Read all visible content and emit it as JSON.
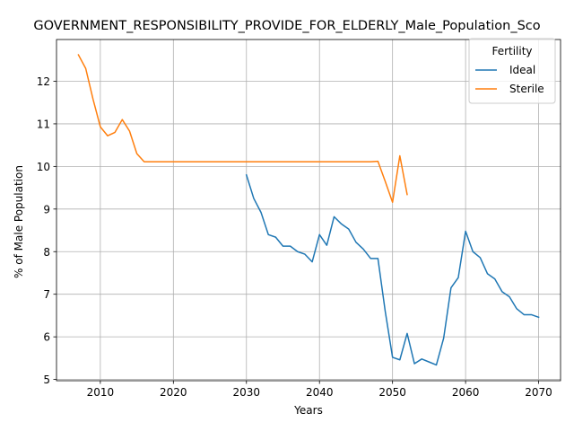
{
  "chart_data": {
    "type": "line",
    "title": "GOVERNMENT_RESPONSIBILITY_PROVIDE_FOR_ELDERLY_Male_Population_Sco",
    "xlabel": "Years",
    "ylabel": "% of Male Population",
    "xlim": [
      2004,
      2073
    ],
    "ylim": [
      4.97,
      12.98
    ],
    "xticks": [
      2010,
      2020,
      2030,
      2040,
      2050,
      2060,
      2070
    ],
    "yticks": [
      5,
      6,
      7,
      8,
      9,
      10,
      11,
      12
    ],
    "grid": true,
    "legend": {
      "title": "Fertility",
      "placement": "upper right"
    },
    "series": [
      {
        "name": "Ideal",
        "color": "#1f77b4",
        "x": [
          2030,
          2031,
          2032,
          2033,
          2034,
          2035,
          2036,
          2037,
          2038,
          2039,
          2040,
          2041,
          2042,
          2043,
          2044,
          2045,
          2046,
          2047,
          2048,
          2049,
          2050,
          2051,
          2052,
          2053,
          2054,
          2055,
          2056,
          2057,
          2058,
          2059,
          2060,
          2061,
          2062,
          2063,
          2064,
          2065,
          2066,
          2067,
          2068,
          2069,
          2070
        ],
        "y": [
          9.8,
          9.25,
          8.92,
          8.4,
          8.34,
          8.13,
          8.13,
          8.0,
          7.94,
          7.76,
          8.4,
          8.15,
          8.82,
          8.65,
          8.53,
          8.22,
          8.06,
          7.84,
          7.84,
          6.6,
          5.52,
          5.46,
          6.08,
          5.37,
          5.48,
          5.41,
          5.34,
          5.97,
          7.15,
          7.39,
          8.48,
          8.0,
          7.86,
          7.48,
          7.36,
          7.06,
          6.94,
          6.66,
          6.52,
          6.52,
          6.46
        ]
      },
      {
        "name": "Sterile",
        "color": "#ff7f0e",
        "x": [
          2007,
          2008,
          2009,
          2010,
          2011,
          2012,
          2013,
          2014,
          2015,
          2016,
          2017,
          2018,
          2019,
          2020,
          2021,
          2022,
          2023,
          2024,
          2025,
          2026,
          2027,
          2028,
          2029,
          2030,
          2031,
          2032,
          2033,
          2034,
          2035,
          2036,
          2037,
          2038,
          2039,
          2040,
          2041,
          2042,
          2043,
          2044,
          2045,
          2046,
          2047,
          2048,
          2049,
          2050,
          2051,
          2052
        ],
        "y": [
          12.62,
          12.3,
          11.58,
          10.93,
          10.72,
          10.8,
          11.1,
          10.83,
          10.3,
          10.11,
          10.11,
          10.11,
          10.11,
          10.11,
          10.11,
          10.11,
          10.11,
          10.11,
          10.11,
          10.11,
          10.11,
          10.11,
          10.11,
          10.11,
          10.11,
          10.11,
          10.11,
          10.11,
          10.11,
          10.11,
          10.11,
          10.11,
          10.11,
          10.11,
          10.11,
          10.11,
          10.11,
          10.11,
          10.11,
          10.11,
          10.11,
          10.12,
          9.65,
          9.16,
          10.25,
          9.34
        ]
      }
    ]
  }
}
